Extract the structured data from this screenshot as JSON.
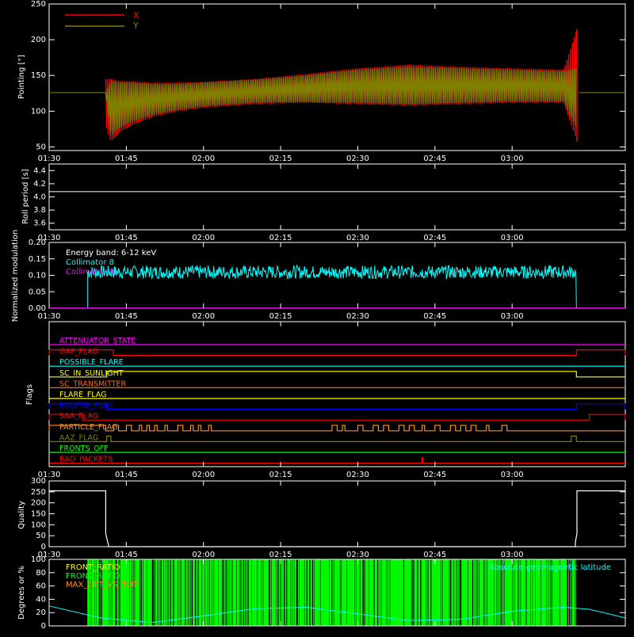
{
  "time_ticks": [
    "01:30",
    "01:45",
    "02:00",
    "02:15",
    "02:30",
    "02:45",
    "03:00"
  ],
  "time_range_min": [
    0,
    112
  ],
  "colors": {
    "background": "#000000",
    "axes": "#ffffff",
    "red": "#ff0000",
    "olive": "#808000",
    "cyan": "#00ffff",
    "magenta": "#ff00ff",
    "green": "#00ff00",
    "orange": "#ff8c1a",
    "yellow": "#ffff00",
    "blue": "#0000ff"
  },
  "chart_data": [
    {
      "type": "line",
      "id": "pointing",
      "ylabel": "Pointing [\"]",
      "ylim": [
        45,
        250
      ],
      "yticks": [
        50,
        100,
        150,
        200,
        250
      ],
      "legend": [
        "X",
        "Y"
      ],
      "legend_placement": "top-left",
      "series": [
        {
          "name": "X",
          "color": "#ff0000",
          "x": [
            11,
            12,
            14,
            16,
            20,
            25,
            30,
            40,
            50,
            60,
            70,
            80,
            90,
            100,
            102.6,
            102.7,
            103
          ],
          "y_low": [
            80,
            58,
            72,
            80,
            92,
            100,
            105,
            110,
            112,
            110,
            108,
            110,
            112,
            112,
            58,
            60,
            125
          ],
          "y_high": [
            145,
            145,
            142,
            142,
            140,
            140,
            141,
            145,
            152,
            160,
            165,
            162,
            160,
            158,
            215,
            180,
            125
          ]
        },
        {
          "name": "Y",
          "color": "#808000",
          "x": [
            0,
            11,
            12,
            14,
            16,
            20,
            25,
            30,
            40,
            50,
            60,
            70,
            80,
            90,
            100,
            102.6,
            103,
            112
          ],
          "y_low": [
            126,
            126,
            65,
            78,
            85,
            95,
            102,
            107,
            112,
            113,
            112,
            110,
            112,
            114,
            114,
            75,
            126,
            126
          ],
          "y_high": [
            126,
            126,
            142,
            140,
            140,
            138,
            138,
            140,
            144,
            150,
            158,
            162,
            160,
            158,
            156,
            160,
            126,
            126
          ]
        }
      ],
      "grid": false
    },
    {
      "type": "line",
      "id": "roll",
      "ylabel": "Roll period [s]",
      "ylim": [
        3.5,
        4.5
      ],
      "yticks": [
        "3.6",
        "3.8",
        "4.0",
        "4.2",
        "4.4"
      ],
      "series": [
        {
          "x": [
            0,
            112
          ],
          "y": [
            4.08,
            4.08
          ],
          "color": "#ffffff"
        }
      ],
      "grid": false
    },
    {
      "type": "line",
      "id": "modulation",
      "ylabel": "Normalized modulation",
      "ylim": [
        0,
        0.2
      ],
      "yticks": [
        "0.00",
        "0.05",
        "0.10",
        "0.15",
        "0.20"
      ],
      "annotation": "Energy band: 6-12 keV",
      "legend": [
        "Collimator 8",
        "Collimator 9"
      ],
      "series": [
        {
          "name": "Collimator 8",
          "color": "#00ffff",
          "x_start": 7.5,
          "x_end": 102.5,
          "y_mean": 0.11,
          "y_noise": 0.02
        },
        {
          "name": "Collimator 9",
          "color": "#ff00ff",
          "x": [
            0,
            112
          ],
          "y": [
            0,
            0
          ]
        }
      ],
      "grid": false
    },
    {
      "type": "line",
      "id": "flags",
      "ylabel": "Flags",
      "flags": [
        {
          "label": "ATTENUATOR_STATE",
          "color": "#ff00ff",
          "on": []
        },
        {
          "label": "GAP_FLAG",
          "color": "#ff0000",
          "on": [
            [
              0,
              12.5
            ],
            [
              102.5,
              112
            ]
          ]
        },
        {
          "label": "POSSIBLE_FLARE",
          "color": "#00ffff",
          "on": []
        },
        {
          "label": "SC_IN_SUNLIGHT",
          "color": "#ffff00",
          "on": [
            [
              11.2,
              102.5
            ]
          ]
        },
        {
          "label": "SC_TRANSMITTER",
          "color": "#ff6400",
          "on": []
        },
        {
          "label": "FLARE_FLAG",
          "color": "#ffff00",
          "on": []
        },
        {
          "label": "ECLIPSE_FLAG",
          "color": "#0000ff",
          "on": [
            [
              0,
              11.2
            ],
            [
              102.5,
              112
            ]
          ]
        },
        {
          "label": "SAA_FLAG",
          "color": "#ff0000",
          "on": [
            [
              0,
              6.5
            ],
            [
              105,
              112
            ]
          ]
        },
        {
          "label": "PARTICLE_FLAG",
          "color": "#ff8c1a",
          "on": [
            [
              0,
              11
            ],
            [
              12.5,
              13.5
            ],
            [
              15,
              16
            ],
            [
              17.5,
              18
            ],
            [
              19,
              19.5
            ],
            [
              20.5,
              21
            ],
            [
              22.5,
              23
            ],
            [
              25,
              26
            ],
            [
              27.5,
              28
            ],
            [
              29,
              29.5
            ],
            [
              31,
              31.5
            ],
            [
              55,
              56
            ],
            [
              57,
              57.5
            ],
            [
              60,
              61
            ],
            [
              63,
              64
            ],
            [
              65,
              66
            ],
            [
              68,
              69
            ],
            [
              70,
              71
            ],
            [
              72.5,
              73
            ],
            [
              75,
              76
            ],
            [
              78,
              79
            ],
            [
              80,
              81
            ],
            [
              82,
              83
            ],
            [
              85,
              85.5
            ],
            [
              88,
              89
            ]
          ]
        },
        {
          "label": "AAZ_FLAG",
          "color": "#808000",
          "on": [
            [
              11.2,
              12
            ],
            [
              101.5,
              102.5
            ]
          ]
        },
        {
          "label": "FRONTS_OFF",
          "color": "#00ff00",
          "on": []
        },
        {
          "label": "BAD_PACKETS",
          "color": "#ff0000",
          "on": [
            [
              72.5,
              72.7
            ]
          ]
        }
      ],
      "grid": false
    },
    {
      "type": "line",
      "id": "quality",
      "ylabel": "Quality",
      "ylim": [
        0,
        300
      ],
      "yticks": [
        0,
        50,
        100,
        150,
        200,
        250,
        300
      ],
      "series": [
        {
          "color": "#ffffff",
          "x": [
            0,
            11,
            11,
            11.6,
            11.6,
            102.3,
            102.3,
            102.6,
            102.6,
            112
          ],
          "y": [
            255,
            255,
            60,
            0,
            0,
            0,
            20,
            60,
            255,
            255
          ]
        }
      ],
      "grid": false
    },
    {
      "type": "line",
      "id": "latitude",
      "ylabel": "Degrees or %",
      "ylim": [
        0,
        100
      ],
      "yticks": [
        0,
        20,
        40,
        60,
        80,
        100
      ],
      "legend": [
        "FRONT_RATIO",
        "FRONT_RATIO_",
        "MAX_DET_VS_TOT"
      ],
      "annotation": "Absolute geomagnetic latitude",
      "series": [
        {
          "name": "FRONT_RATIO",
          "color": "#ffff00",
          "x": [
            0,
            112
          ],
          "y": [
            0,
            0
          ]
        },
        {
          "name": "FRONT_RATIO_",
          "color": "#00ff00",
          "x_start": 7.5,
          "x_end": 102.5,
          "y": 100
        },
        {
          "name": "MAX_DET_VS_TOT",
          "color": "#ff8c1a",
          "x": [
            0,
            112
          ],
          "y": [
            0,
            0
          ]
        },
        {
          "name": "Absolute geomagnetic latitude",
          "color": "#00ffff",
          "x": [
            0,
            10,
            20,
            30,
            40,
            50,
            60,
            70,
            80,
            90,
            100,
            105,
            112
          ],
          "y": [
            30,
            12,
            5,
            15,
            26,
            28,
            18,
            8,
            10,
            22,
            28,
            25,
            12
          ]
        }
      ],
      "grid": false
    }
  ]
}
